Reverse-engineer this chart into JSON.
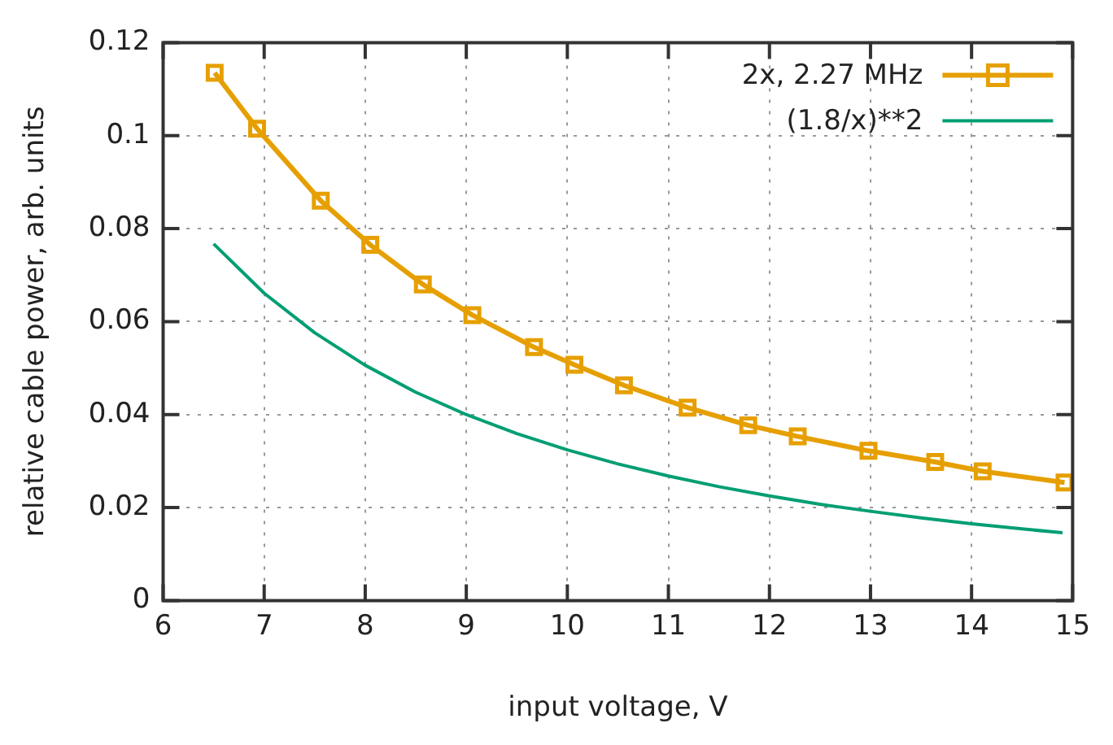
{
  "chart_data": {
    "type": "line",
    "xlabel": "input voltage, V",
    "ylabel": "relative cable power, arb. units",
    "xlim": [
      6,
      15
    ],
    "xticks": [
      6,
      7,
      8,
      9,
      10,
      11,
      12,
      13,
      14,
      15
    ],
    "ylim": [
      0,
      0.12
    ],
    "yticks": [
      0,
      0.02,
      0.04,
      0.06,
      0.08,
      0.1,
      0.12
    ],
    "grid": true,
    "legend": "top right",
    "series": [
      {
        "name": "2x, 2.27 MHz",
        "color": "#e69f00",
        "marker": "square",
        "line_style": "solid",
        "x": [
          6.51,
          6.93,
          7.56,
          8.05,
          8.57,
          9.06,
          9.67,
          10.07,
          10.56,
          11.19,
          11.79,
          12.28,
          12.98,
          13.64,
          14.11,
          14.92
        ],
        "values": [
          0.1135,
          0.1015,
          0.086,
          0.0765,
          0.068,
          0.0614,
          0.0545,
          0.0507,
          0.0463,
          0.0415,
          0.0377,
          0.0353,
          0.0322,
          0.0298,
          0.0278,
          0.0254
        ]
      },
      {
        "name": "(1.8/x)**2",
        "color": "#009e73",
        "marker": "none",
        "line_style": "solid",
        "x": [
          6.5,
          7,
          7.5,
          8,
          8.5,
          9,
          9.5,
          10,
          10.5,
          11,
          11.5,
          12,
          12.5,
          13,
          13.5,
          14,
          14.5,
          14.9
        ],
        "values": [
          0.0767,
          0.0661,
          0.0576,
          0.0506,
          0.0448,
          0.04,
          0.0359,
          0.0324,
          0.0294,
          0.0268,
          0.0245,
          0.0225,
          0.0207,
          0.0192,
          0.0178,
          0.0165,
          0.0154,
          0.0146
        ]
      }
    ]
  }
}
